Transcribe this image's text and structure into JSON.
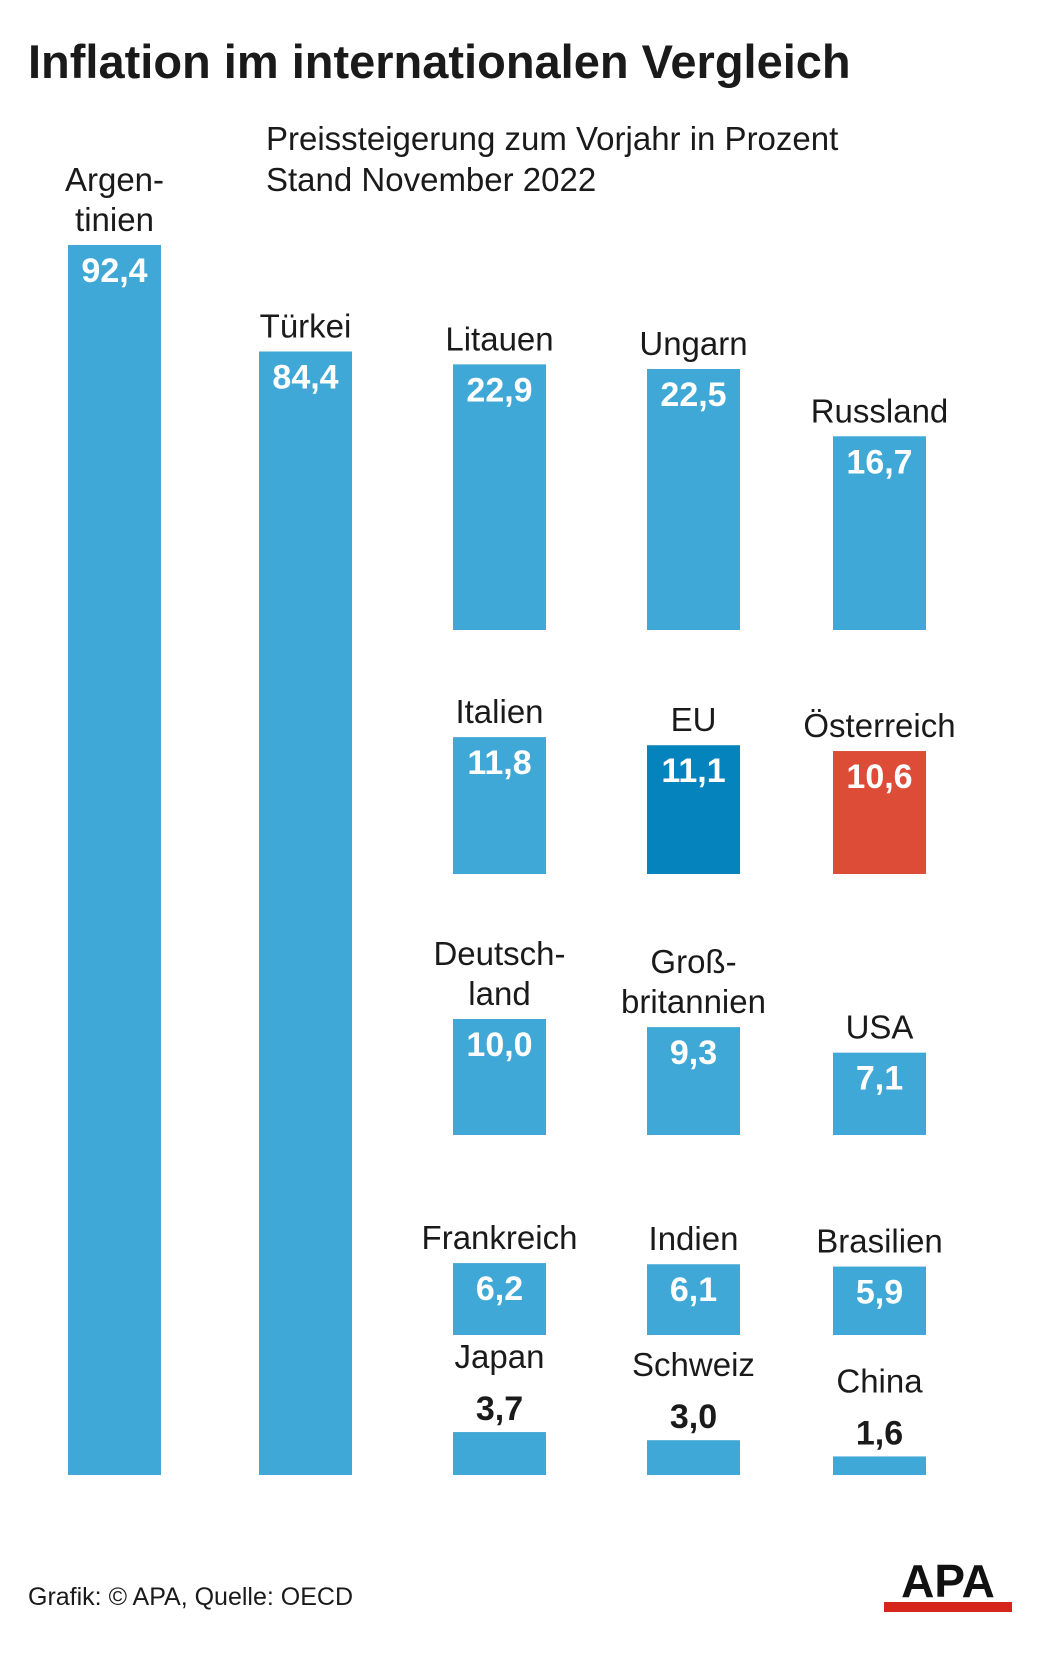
{
  "title": "Inflation im internationalen Vergleich",
  "subtitle_line1": "Preissteigerung zum Vorjahr in Prozent",
  "subtitle_line2": "Stand November 2022",
  "footer": "Grafik: © APA, Quelle: OECD",
  "logo_text": "APA",
  "colors": {
    "default_bar": "#40a8d6",
    "eu_bar": "#0583bd",
    "austria_bar": "#dc4c36",
    "value_label": "#ffffff",
    "logo_red": "#d6261c"
  },
  "chart_data": {
    "type": "bar",
    "unit": "%",
    "categories": [
      "Argen-\ntinien",
      "Türkei",
      "Litauen",
      "Ungarn",
      "Russland",
      "Italien",
      "EU",
      "Österreich",
      "Deutsch-\nland",
      "Groß-\nbritannien",
      "USA",
      "Frankreich",
      "Indien",
      "Brasilien",
      "Japan",
      "Schweiz",
      "China"
    ],
    "values": [
      92.4,
      84.4,
      22.9,
      22.5,
      16.7,
      11.8,
      11.1,
      10.6,
      10.0,
      9.3,
      7.1,
      6.2,
      6.1,
      5.9,
      3.7,
      3.0,
      1.6
    ],
    "value_labels": [
      "92,4",
      "84,4",
      "22,9",
      "22,5",
      "16,7",
      "11,8",
      "11,1",
      "10,6",
      "10,0",
      "9,3",
      "7,1",
      "6,2",
      "6,1",
      "5,9",
      "3,7",
      "3,0",
      "1,6"
    ],
    "highlight": [
      "default",
      "default",
      "default",
      "default",
      "default",
      "default",
      "eu",
      "austria",
      "default",
      "default",
      "default",
      "default",
      "default",
      "default",
      "default",
      "default",
      "default"
    ]
  }
}
